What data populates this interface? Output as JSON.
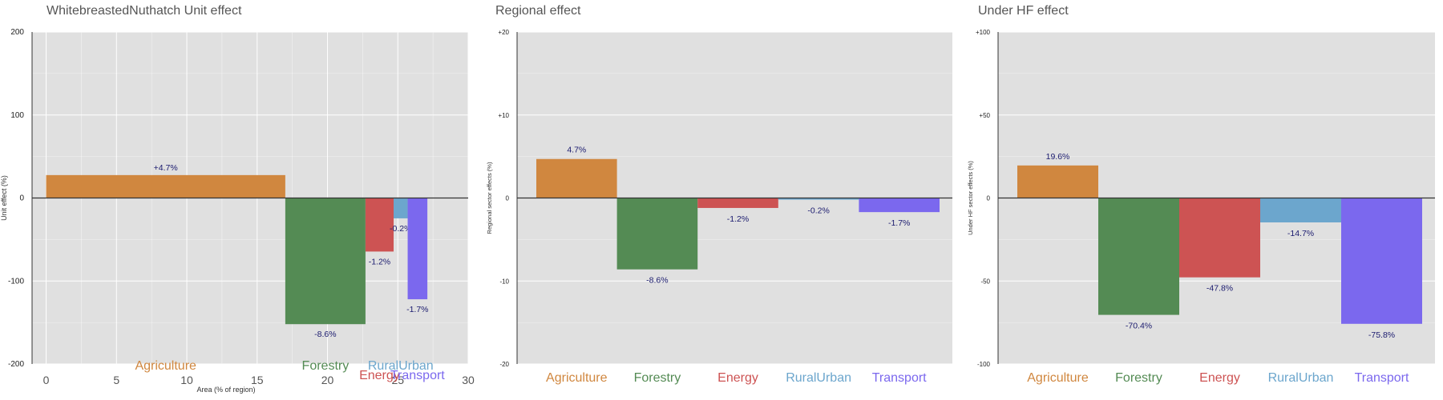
{
  "chart_data": [
    {
      "type": "bar",
      "title": "WhitebreastedNuthatch Unit effect",
      "xlabel": "Area (% of region)",
      "ylabel": "Unit effect (%)",
      "xlim": [
        -1,
        30
      ],
      "ylim": [
        -200,
        200
      ],
      "x_ticks": [
        "0",
        "5",
        "10",
        "15",
        "20",
        "25",
        "30"
      ],
      "y_ticks": [
        "200",
        "100",
        "0",
        "-100",
        "-200"
      ],
      "grid": true,
      "bars": [
        {
          "name": "Agriculture",
          "x_start": 0,
          "x_end": 17.0,
          "value": 27.6,
          "label": "+4.7%",
          "color": "#d0873f"
        },
        {
          "name": "Forestry",
          "x_start": 17.0,
          "x_end": 22.7,
          "value": -152,
          "label": "-8.6%",
          "color": "#548b54"
        },
        {
          "name": "Energy",
          "x_start": 22.7,
          "x_end": 24.7,
          "value": -64.5,
          "label": "-1.2%",
          "color": "#cd5353"
        },
        {
          "name": "RuralUrban",
          "x_start": 24.7,
          "x_end": 25.7,
          "value": -24.5,
          "label": "-0.2%",
          "color": "#6ca6cd"
        },
        {
          "name": "Transport",
          "x_start": 25.7,
          "x_end": 27.1,
          "value": -122,
          "label": "-1.7%",
          "color": "#7b68ee"
        }
      ]
    },
    {
      "type": "bar",
      "title": "Regional effect",
      "ylabel": "Regional sector effects (%)",
      "ylim": [
        -20,
        20
      ],
      "y_ticks": [
        "+20",
        "+10",
        "0",
        "-10",
        "-20"
      ],
      "grid": true,
      "bars": [
        {
          "name": "Agriculture",
          "value": 4.7,
          "label": "4.7%",
          "color": "#d0873f"
        },
        {
          "name": "Forestry",
          "value": -8.6,
          "label": "-8.6%",
          "color": "#548b54"
        },
        {
          "name": "Energy",
          "value": -1.2,
          "label": "-1.2%",
          "color": "#cd5353"
        },
        {
          "name": "RuralUrban",
          "value": -0.2,
          "label": "-0.2%",
          "color": "#6ca6cd"
        },
        {
          "name": "Transport",
          "value": -1.7,
          "label": "-1.7%",
          "color": "#7b68ee"
        }
      ]
    },
    {
      "type": "bar",
      "title": "Under HF effect",
      "ylabel": "Under HF sector effects (%)",
      "ylim": [
        -100,
        100
      ],
      "y_ticks": [
        "+100",
        "+50",
        "0",
        "-50",
        "-100"
      ],
      "grid": true,
      "bars": [
        {
          "name": "Agriculture",
          "value": 19.6,
          "label": "19.6%",
          "color": "#d0873f"
        },
        {
          "name": "Forestry",
          "value": -70.4,
          "label": "-70.4%",
          "color": "#548b54"
        },
        {
          "name": "Energy",
          "value": -47.8,
          "label": "-47.8%",
          "color": "#cd5353"
        },
        {
          "name": "RuralUrban",
          "value": -14.7,
          "label": "-14.7%",
          "color": "#6ca6cd"
        },
        {
          "name": "Transport",
          "value": -75.8,
          "label": "-75.8%",
          "color": "#7b68ee"
        }
      ]
    }
  ]
}
